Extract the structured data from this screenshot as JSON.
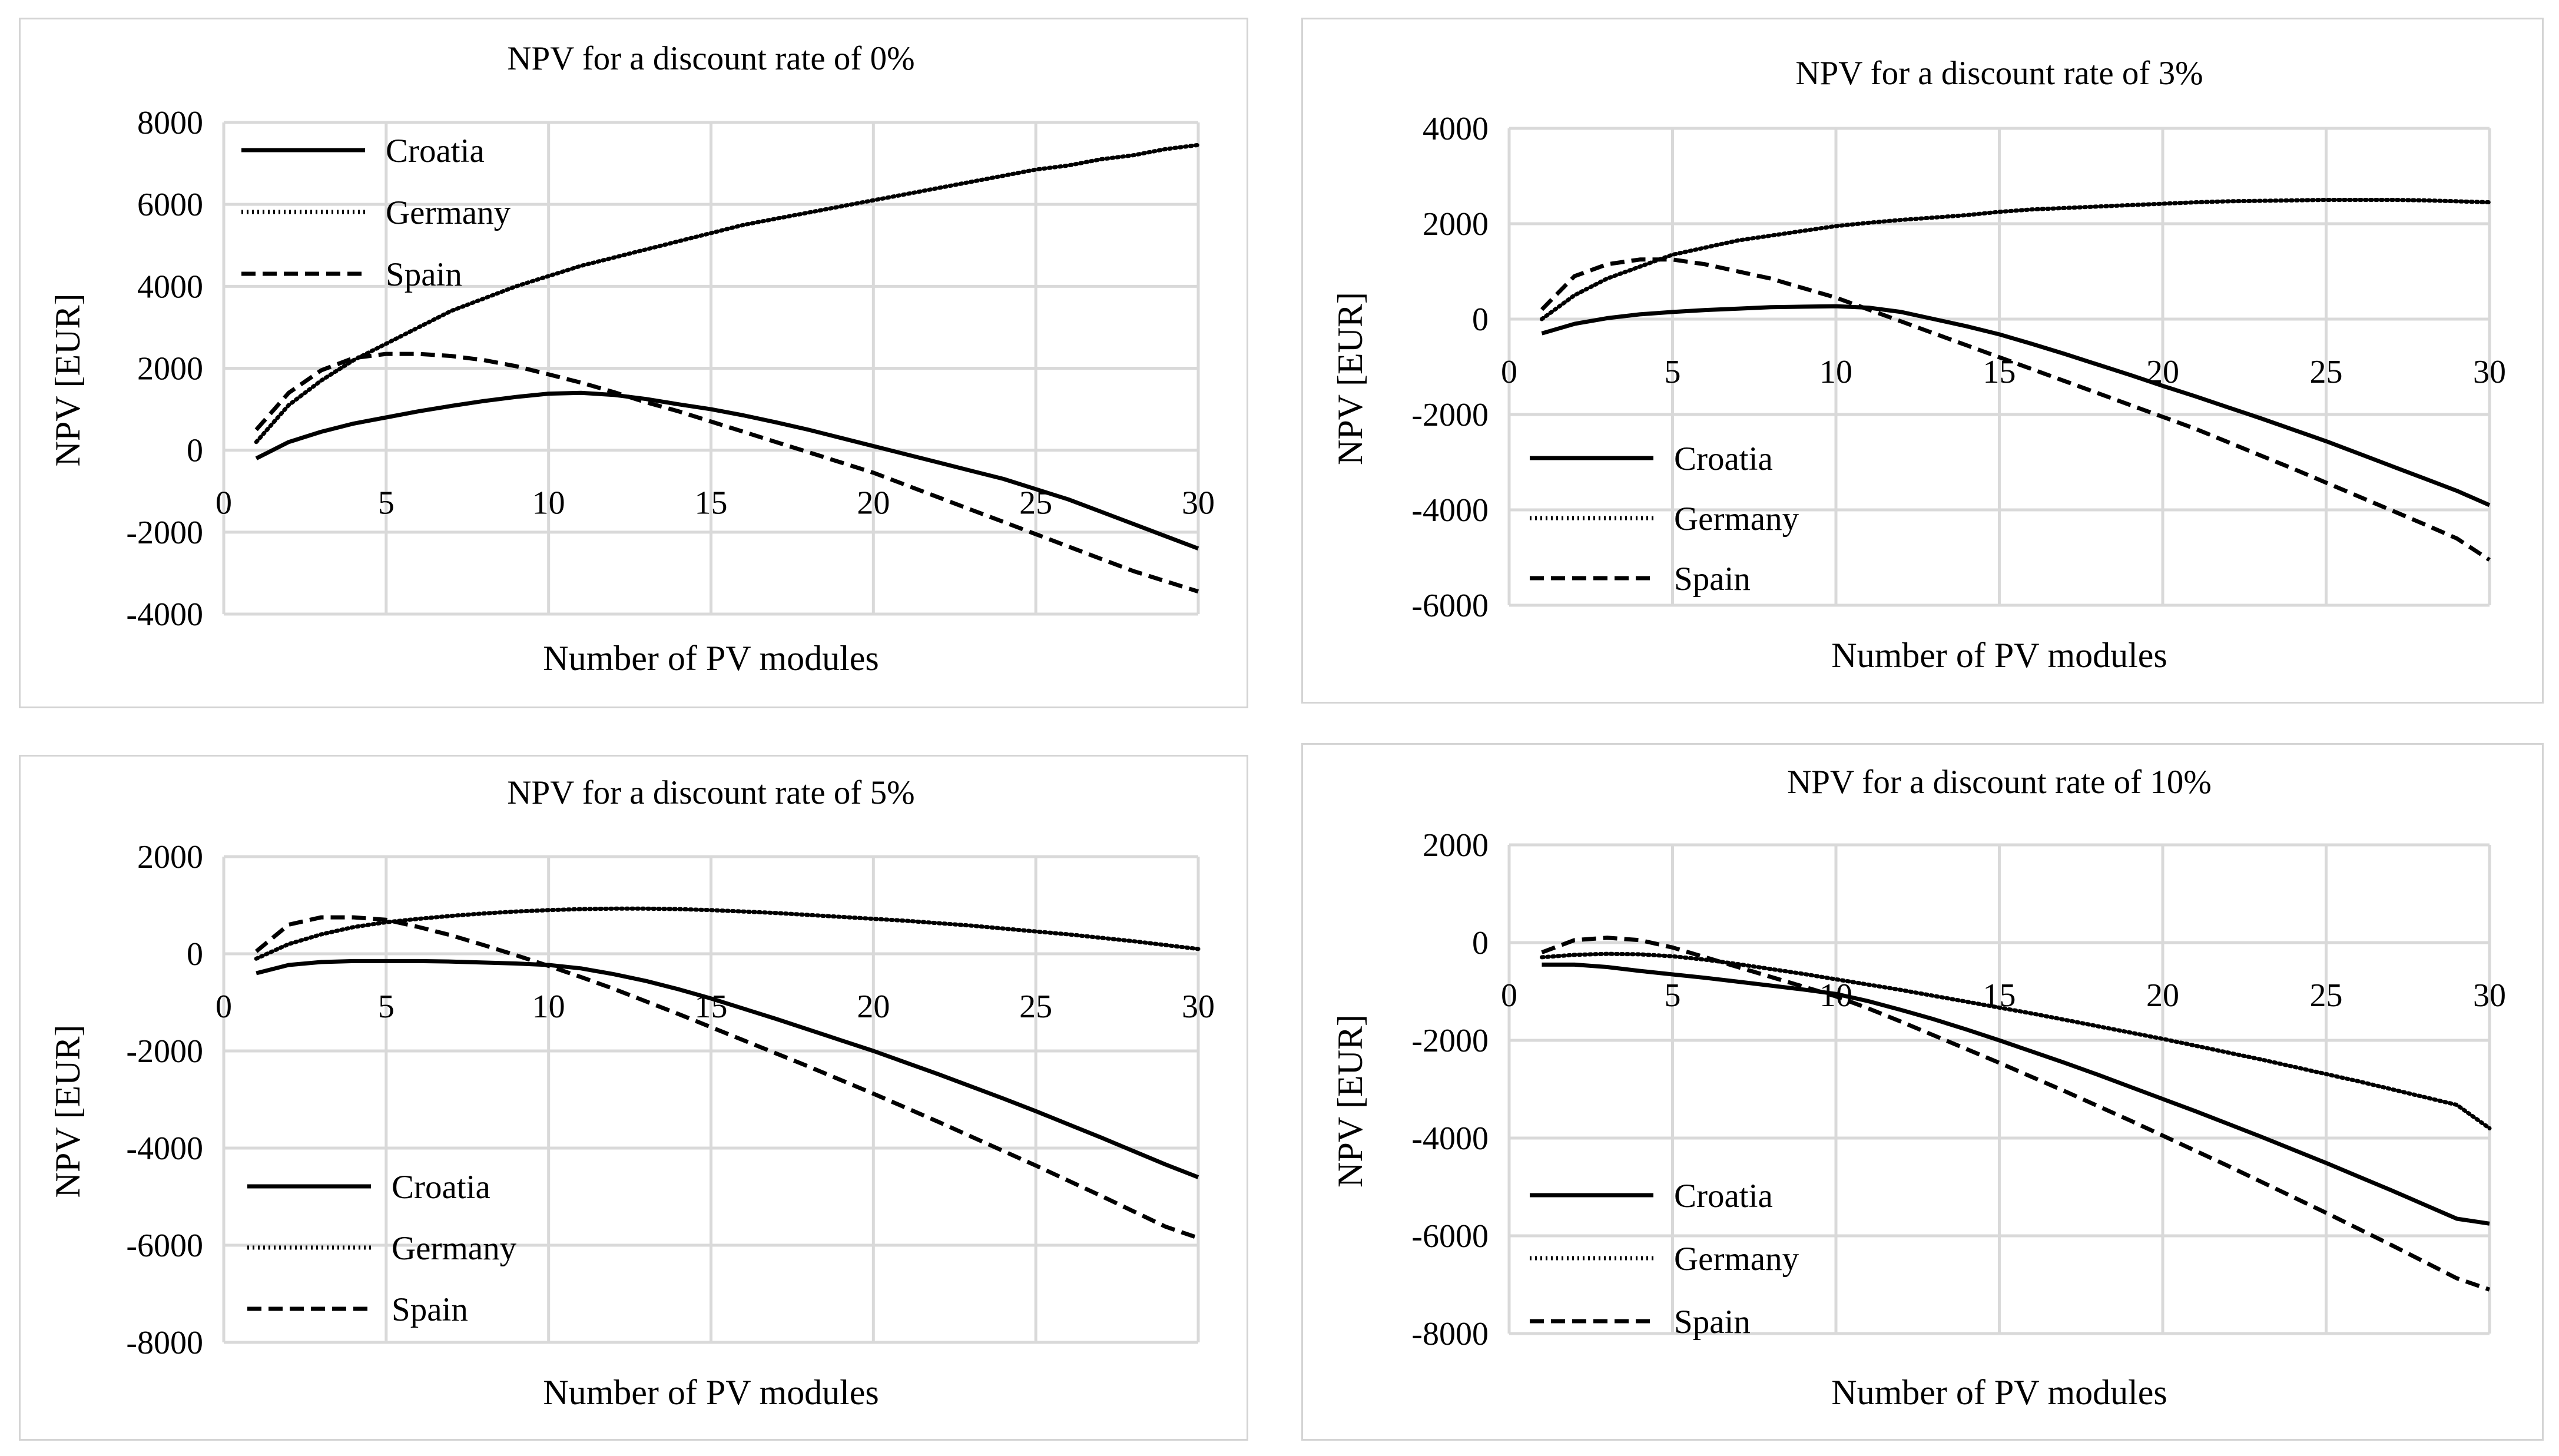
{
  "chart_data": [
    {
      "type": "line",
      "title": "NPV for a discount rate of 0%",
      "xlabel": "Number of PV modules",
      "ylabel": "NPV [EUR]",
      "xlim": [
        0,
        30
      ],
      "ylim": [
        -4000,
        8000
      ],
      "x_ticks": [
        "0",
        "5",
        "10",
        "15",
        "20",
        "25",
        "30"
      ],
      "y_ticks": [
        "8000",
        "6000",
        "4000",
        "2000",
        "0",
        "-2000",
        "-4000"
      ],
      "legend_position": "top-left",
      "grid": true,
      "x": [
        1,
        2,
        3,
        4,
        5,
        6,
        7,
        8,
        9,
        10,
        11,
        12,
        13,
        14,
        15,
        16,
        17,
        18,
        19,
        20,
        21,
        22,
        23,
        24,
        25,
        26,
        27,
        28,
        29,
        30
      ],
      "series": [
        {
          "name": "Croatia",
          "style": "solid",
          "values": [
            -200,
            200,
            450,
            650,
            800,
            950,
            1080,
            1200,
            1300,
            1380,
            1400,
            1350,
            1250,
            1120,
            1000,
            850,
            680,
            500,
            300,
            100,
            -100,
            -300,
            -500,
            -700,
            -950,
            -1200,
            -1500,
            -1800,
            -2100,
            -2400
          ]
        },
        {
          "name": "Germany",
          "style": "dotted",
          "values": [
            200,
            1100,
            1700,
            2200,
            2600,
            3000,
            3400,
            3700,
            4000,
            4250,
            4500,
            4700,
            4900,
            5100,
            5300,
            5500,
            5650,
            5800,
            5950,
            6100,
            6250,
            6400,
            6550,
            6700,
            6850,
            6950,
            7100,
            7200,
            7350,
            7450
          ]
        },
        {
          "name": "Spain",
          "style": "dashed",
          "values": [
            500,
            1400,
            1950,
            2250,
            2350,
            2350,
            2300,
            2200,
            2050,
            1850,
            1650,
            1420,
            1170,
            950,
            700,
            450,
            200,
            -50,
            -300,
            -550,
            -850,
            -1150,
            -1450,
            -1750,
            -2050,
            -2350,
            -2650,
            -2950,
            -3200,
            -3450
          ]
        }
      ]
    },
    {
      "type": "line",
      "title": "NPV for a discount rate of 3%",
      "xlabel": "Number of PV modules",
      "ylabel": "NPV [EUR]",
      "xlim": [
        0,
        30
      ],
      "ylim": [
        -6000,
        4000
      ],
      "x_ticks": [
        "0",
        "5",
        "10",
        "15",
        "20",
        "25",
        "30"
      ],
      "y_ticks": [
        "4000",
        "2000",
        "0",
        "-2000",
        "-4000",
        "-6000"
      ],
      "legend_position": "bottom-left",
      "grid": true,
      "x": [
        1,
        2,
        3,
        4,
        5,
        6,
        7,
        8,
        9,
        10,
        11,
        12,
        13,
        14,
        15,
        16,
        17,
        18,
        19,
        20,
        21,
        22,
        23,
        24,
        25,
        26,
        27,
        28,
        29,
        30
      ],
      "series": [
        {
          "name": "Croatia",
          "style": "solid",
          "values": [
            -300,
            -100,
            20,
            100,
            150,
            190,
            220,
            250,
            260,
            270,
            240,
            150,
            0,
            -150,
            -320,
            -520,
            -730,
            -950,
            -1170,
            -1400,
            -1620,
            -1850,
            -2080,
            -2320,
            -2560,
            -2820,
            -3080,
            -3340,
            -3600,
            -3900
          ]
        },
        {
          "name": "Germany",
          "style": "dotted",
          "values": [
            0,
            500,
            850,
            1100,
            1350,
            1500,
            1650,
            1750,
            1850,
            1950,
            2020,
            2080,
            2130,
            2180,
            2250,
            2300,
            2330,
            2360,
            2390,
            2420,
            2450,
            2470,
            2480,
            2490,
            2500,
            2500,
            2500,
            2490,
            2470,
            2450
          ]
        },
        {
          "name": "Spain",
          "style": "dashed",
          "values": [
            200,
            900,
            1150,
            1250,
            1250,
            1150,
            1000,
            850,
            650,
            450,
            200,
            -50,
            -300,
            -550,
            -800,
            -1050,
            -1300,
            -1550,
            -1800,
            -2050,
            -2300,
            -2580,
            -2860,
            -3140,
            -3430,
            -3720,
            -4010,
            -4300,
            -4600,
            -5050
          ]
        }
      ]
    },
    {
      "type": "line",
      "title": "NPV for a discount rate of 5%",
      "xlabel": "Number of PV modules",
      "ylabel": "NPV [EUR]",
      "xlim": [
        0,
        30
      ],
      "ylim": [
        -8000,
        2000
      ],
      "x_ticks": [
        "0",
        "5",
        "10",
        "15",
        "20",
        "25",
        "30"
      ],
      "y_ticks": [
        "2000",
        "0",
        "-2000",
        "-4000",
        "-6000",
        "-8000"
      ],
      "legend_position": "bottom-left",
      "grid": true,
      "x": [
        1,
        2,
        3,
        4,
        5,
        6,
        7,
        8,
        9,
        10,
        11,
        12,
        13,
        14,
        15,
        16,
        17,
        18,
        19,
        20,
        21,
        22,
        23,
        24,
        25,
        26,
        27,
        28,
        29,
        30
      ],
      "series": [
        {
          "name": "Croatia",
          "style": "solid",
          "values": [
            -400,
            -230,
            -170,
            -150,
            -150,
            -150,
            -160,
            -180,
            -200,
            -230,
            -300,
            -420,
            -560,
            -730,
            -920,
            -1130,
            -1340,
            -1560,
            -1780,
            -2000,
            -2240,
            -2480,
            -2730,
            -2980,
            -3240,
            -3510,
            -3780,
            -4060,
            -4340,
            -4600
          ]
        },
        {
          "name": "Germany",
          "style": "dotted",
          "values": [
            -100,
            200,
            400,
            550,
            650,
            720,
            780,
            830,
            870,
            900,
            920,
            930,
            930,
            920,
            900,
            870,
            840,
            800,
            760,
            720,
            680,
            630,
            580,
            520,
            460,
            400,
            330,
            260,
            180,
            100
          ]
        },
        {
          "name": "Spain",
          "style": "dashed",
          "values": [
            50,
            600,
            750,
            750,
            700,
            550,
            380,
            180,
            -30,
            -250,
            -480,
            -720,
            -980,
            -1240,
            -1510,
            -1780,
            -2050,
            -2320,
            -2600,
            -2880,
            -3170,
            -3460,
            -3760,
            -4060,
            -4360,
            -4670,
            -4980,
            -5300,
            -5620,
            -5850
          ]
        }
      ]
    },
    {
      "type": "line",
      "title": "NPV for a discount rate of 10%",
      "xlabel": "Number of PV modules",
      "ylabel": "NPV [EUR]",
      "xlim": [
        0,
        30
      ],
      "ylim": [
        -8000,
        2000
      ],
      "x_ticks": [
        "0",
        "5",
        "10",
        "15",
        "20",
        "25",
        "30"
      ],
      "y_ticks": [
        "2000",
        "0",
        "-2000",
        "-4000",
        "-6000",
        "-8000"
      ],
      "legend_position": "bottom-left",
      "grid": true,
      "x": [
        1,
        2,
        3,
        4,
        5,
        6,
        7,
        8,
        9,
        10,
        11,
        12,
        13,
        14,
        15,
        16,
        17,
        18,
        19,
        20,
        21,
        22,
        23,
        24,
        25,
        26,
        27,
        28,
        29,
        30
      ],
      "series": [
        {
          "name": "Croatia",
          "style": "solid",
          "values": [
            -450,
            -450,
            -500,
            -580,
            -650,
            -720,
            -800,
            -880,
            -960,
            -1050,
            -1200,
            -1380,
            -1570,
            -1780,
            -2000,
            -2230,
            -2460,
            -2700,
            -2950,
            -3200,
            -3450,
            -3710,
            -3970,
            -4240,
            -4510,
            -4790,
            -5070,
            -5360,
            -5650,
            -5750
          ]
        },
        {
          "name": "Germany",
          "style": "dotted",
          "values": [
            -300,
            -250,
            -230,
            -240,
            -280,
            -350,
            -440,
            -540,
            -640,
            -750,
            -860,
            -970,
            -1090,
            -1210,
            -1330,
            -1450,
            -1580,
            -1710,
            -1840,
            -1970,
            -2110,
            -2250,
            -2390,
            -2540,
            -2690,
            -2840,
            -3000,
            -3160,
            -3320,
            -3800
          ]
        },
        {
          "name": "Spain",
          "style": "dashed",
          "values": [
            -200,
            50,
            100,
            50,
            -100,
            -300,
            -500,
            -700,
            -900,
            -1100,
            -1350,
            -1620,
            -1900,
            -2180,
            -2460,
            -2750,
            -3040,
            -3340,
            -3640,
            -3950,
            -4260,
            -4570,
            -4890,
            -5210,
            -5530,
            -5860,
            -6190,
            -6530,
            -6870,
            -7100
          ]
        }
      ]
    }
  ]
}
